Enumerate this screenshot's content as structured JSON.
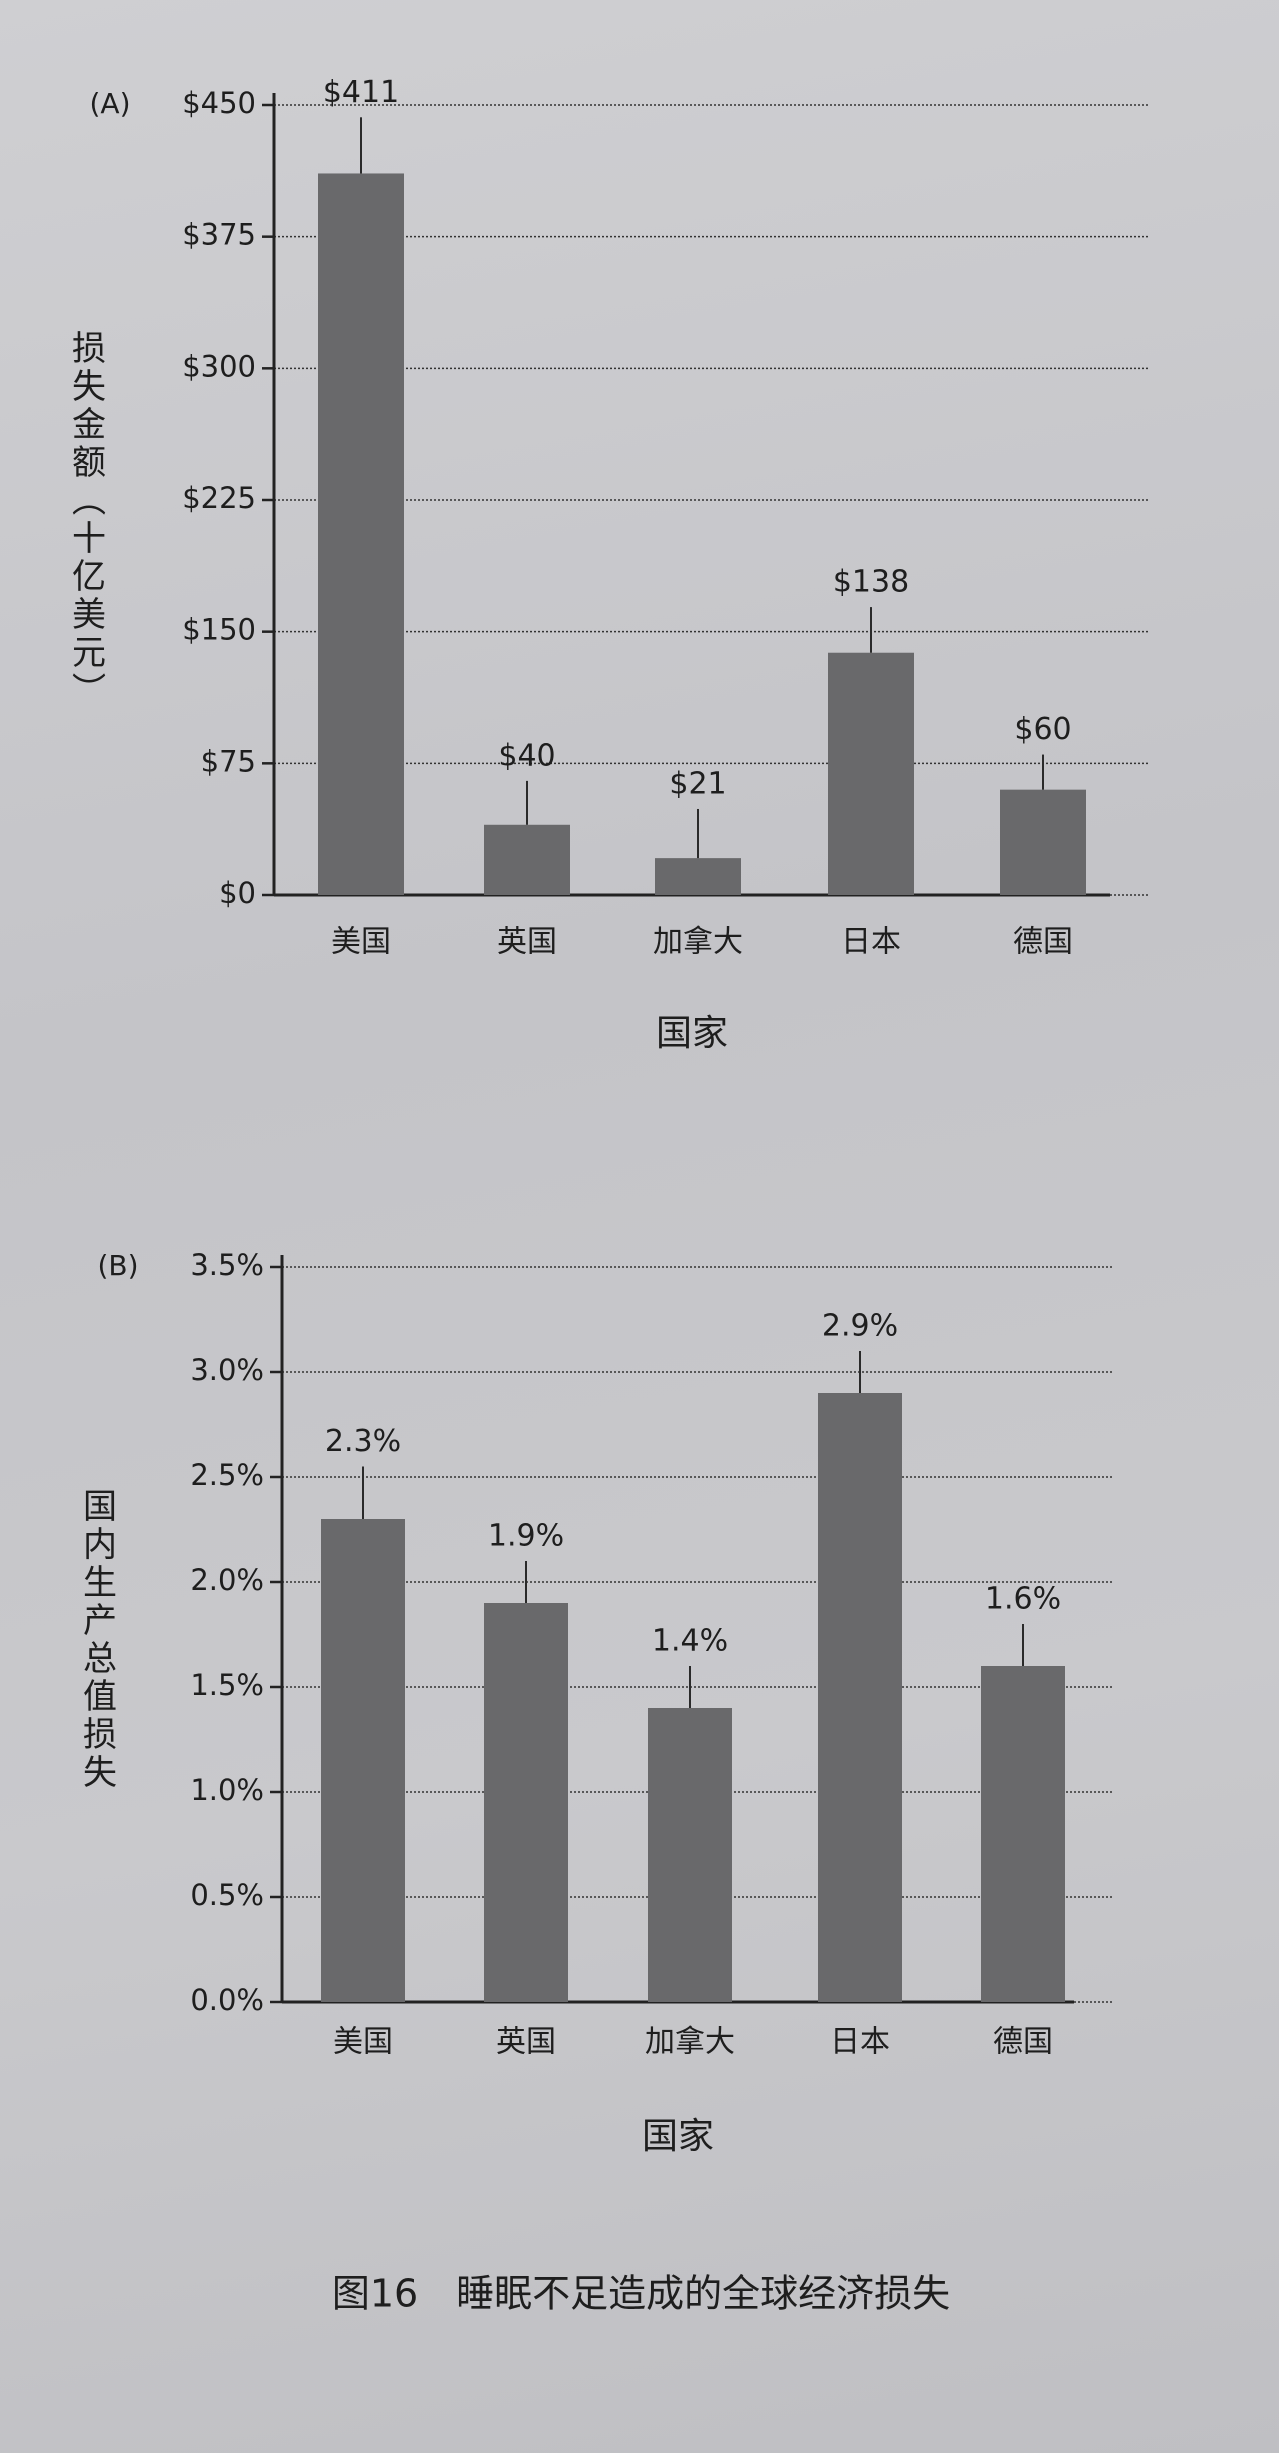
{
  "chart_data": [
    {
      "type": "bar",
      "panel_label": "(A)",
      "y_label": "损失金额（十亿美元）",
      "x_label": "国家",
      "categories": [
        "美国",
        "英国",
        "加拿大",
        "日本",
        "德国"
      ],
      "values": [
        411,
        40,
        21,
        138,
        60
      ],
      "value_labels": [
        "$411",
        "$40",
        "$21",
        "$138",
        "$60"
      ],
      "errors": [
        32,
        25,
        28,
        26,
        20
      ],
      "color": "#69696b",
      "ylim": [
        0,
        450
      ],
      "yticks": [
        {
          "value": 0,
          "label": "$0"
        },
        {
          "value": 75,
          "label": "$75"
        },
        {
          "value": 150,
          "label": "$150"
        },
        {
          "value": 225,
          "label": "$225"
        },
        {
          "value": 300,
          "label": "$300"
        },
        {
          "value": 375,
          "label": "$375"
        },
        {
          "value": 450,
          "label": "$450"
        }
      ],
      "grid": true
    },
    {
      "type": "bar",
      "panel_label": "(B)",
      "y_label": "国内生产总值损失",
      "x_label": "国家",
      "categories": [
        "美国",
        "英国",
        "加拿大",
        "日本",
        "德国"
      ],
      "values": [
        2.3,
        1.9,
        1.4,
        2.9,
        1.6
      ],
      "value_labels": [
        "2.3%",
        "1.9%",
        "1.4%",
        "2.9%",
        "1.6%"
      ],
      "errors": [
        0.25,
        0.2,
        0.2,
        0.2,
        0.2
      ],
      "color": "#69696b",
      "ylim": [
        0,
        3.5
      ],
      "yticks": [
        {
          "value": 0,
          "label": "0.0%"
        },
        {
          "value": 0.5,
          "label": "0.5%"
        },
        {
          "value": 1,
          "label": "1.0%"
        },
        {
          "value": 1.5,
          "label": "1.5%"
        },
        {
          "value": 2,
          "label": "2.0%"
        },
        {
          "value": 2.5,
          "label": "2.5%"
        },
        {
          "value": 3,
          "label": "3.0%"
        },
        {
          "value": 3.5,
          "label": "3.5%"
        }
      ],
      "grid": true
    }
  ],
  "caption": "图16　睡眠不足造成的全球经济损失"
}
